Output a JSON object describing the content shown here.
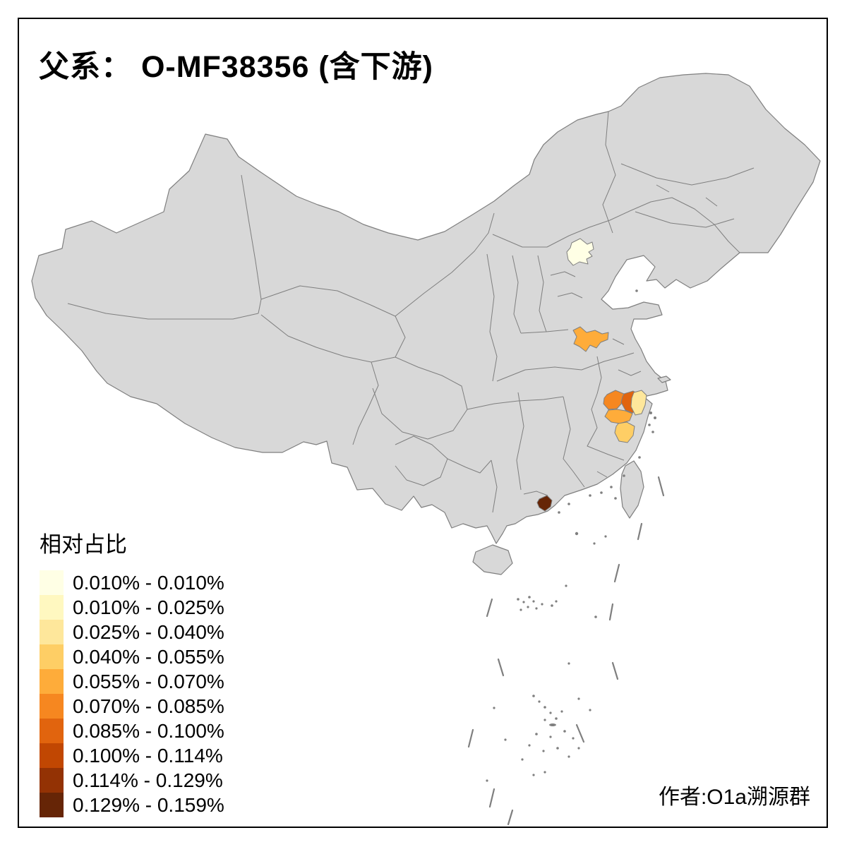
{
  "title": "父系： O-MF38356 (含下游)",
  "attribution": "作者:O1a溯源群",
  "legend": {
    "title": "相对占比",
    "items": [
      {
        "label": "0.010% - 0.010%",
        "color": "#FFFFE5"
      },
      {
        "label": "0.010% - 0.025%",
        "color": "#FFF8C0"
      },
      {
        "label": "0.025% - 0.040%",
        "color": "#FEE79B"
      },
      {
        "label": "0.040% - 0.055%",
        "color": "#FECE65"
      },
      {
        "label": "0.055% - 0.070%",
        "color": "#FEAC3A"
      },
      {
        "label": "0.070% - 0.085%",
        "color": "#F68720"
      },
      {
        "label": "0.085% - 0.100%",
        "color": "#E1640E"
      },
      {
        "label": "0.100% - 0.114%",
        "color": "#C14702"
      },
      {
        "label": "0.114% - 0.129%",
        "color": "#933204"
      },
      {
        "label": "0.129% - 0.159%",
        "color": "#662506"
      }
    ]
  },
  "map": {
    "land_fill": "#D8D8D8",
    "border_color": "#7F7F7F",
    "background": "#FFFFFF",
    "frame_color": "#000000",
    "regions": [
      {
        "id": "region-north-beijing-area",
        "value_range": "0.010% - 0.010%",
        "color": "#FFFFE5"
      },
      {
        "id": "region-southwest-shandong",
        "value_range": "0.055% - 0.070%",
        "color": "#FEAC3A"
      },
      {
        "id": "region-delta-northwest",
        "value_range": "0.070% - 0.085%",
        "color": "#F68720"
      },
      {
        "id": "region-delta-center",
        "value_range": "0.085% - 0.100%",
        "color": "#E1640E"
      },
      {
        "id": "region-delta-south",
        "value_range": "0.055% - 0.070%",
        "color": "#FEAC3A"
      },
      {
        "id": "region-delta-east-coast",
        "value_range": "0.025% - 0.040%",
        "color": "#FEE79B"
      },
      {
        "id": "region-zhejiang-coast-south",
        "value_range": "0.040% - 0.055%",
        "color": "#FECE65"
      },
      {
        "id": "region-pearl-delta",
        "value_range": "0.129% - 0.159%",
        "color": "#662506"
      }
    ]
  }
}
